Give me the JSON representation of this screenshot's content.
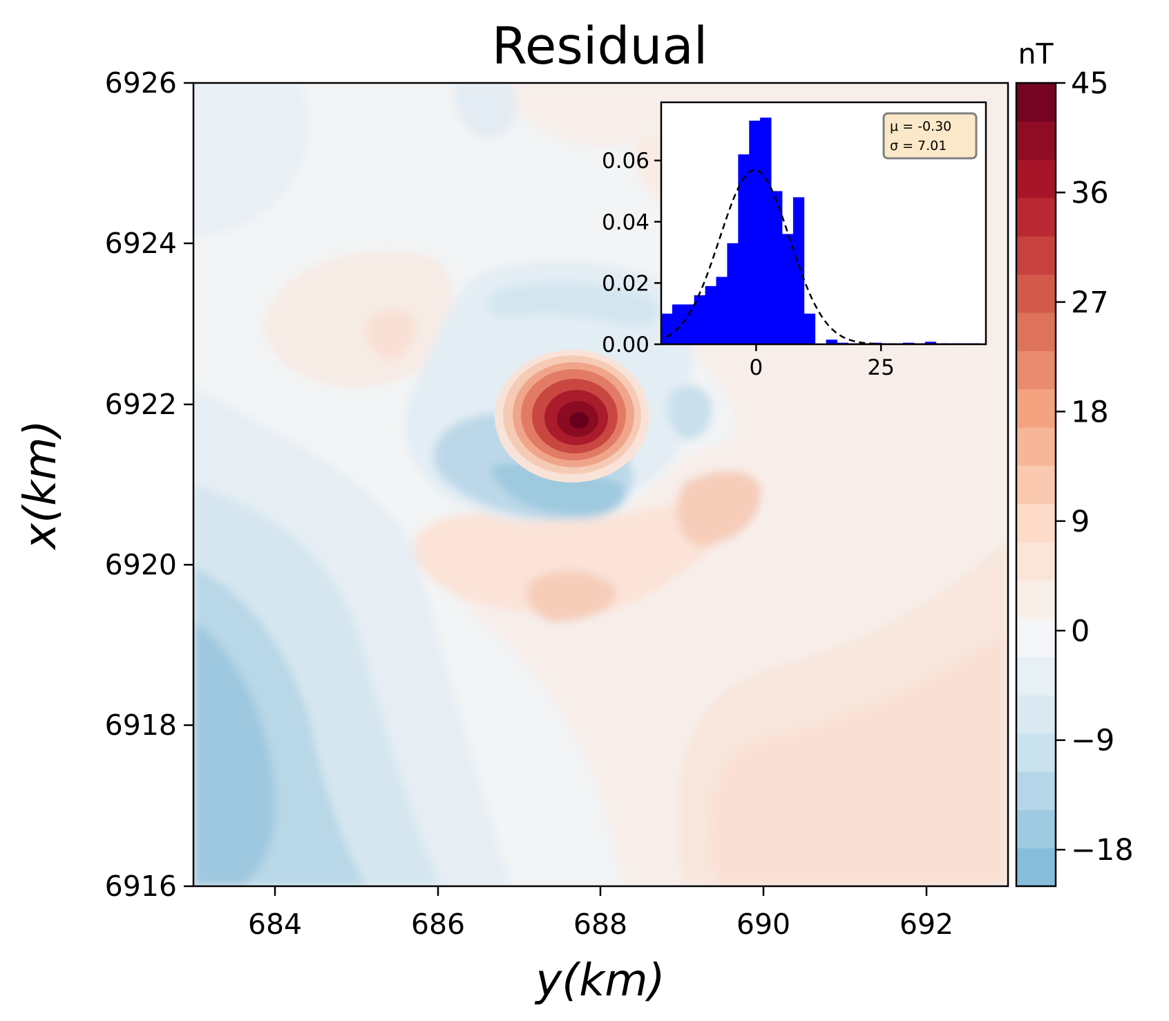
{
  "colors": {
    "inset_bar": "#0000ff",
    "fit_curve": "#000000",
    "stats_box_fill": "#fbe8c8",
    "stats_box_stroke": "#808080"
  },
  "chart_data": [
    {
      "type": "heatmap",
      "title": "Residual",
      "xlabel": "y(km)",
      "ylabel": "x(km)",
      "xlim": [
        683,
        693
      ],
      "ylim": [
        6916,
        6926
      ],
      "xticks": [
        "684",
        "686",
        "688",
        "690",
        "692"
      ],
      "yticks": [
        "6916",
        "6918",
        "6920",
        "6922",
        "6924",
        "6926"
      ],
      "colormap": "RdBu_r",
      "grid": false,
      "colorbar": {
        "label": "nT",
        "range": [
          -21,
          45
        ],
        "ticks": [
          "−18",
          "−9",
          "0",
          "9",
          "18",
          "27",
          "36",
          "45"
        ],
        "levels": 21
      },
      "features": [
        {
          "kind": "positive anomaly",
          "y_km": 687.7,
          "x_km": 6921.8,
          "peak_nT": 45
        },
        {
          "kind": "negative trough",
          "y_km": 687.8,
          "x_km": 6920.8,
          "value_nT": -15
        },
        {
          "kind": "negative anomaly",
          "y_km": 689.1,
          "x_km": 6921.9,
          "value_nT": -9
        },
        {
          "kind": "positive anomaly",
          "y_km": 689.4,
          "x_km": 6920.7,
          "value_nT": 9
        },
        {
          "kind": "positive anomaly",
          "y_km": 687.2,
          "x_km": 6919.6,
          "value_nT": 9
        },
        {
          "kind": "positive anomaly",
          "y_km": 684.5,
          "x_km": 6922.9,
          "value_nT": 6
        },
        {
          "kind": "negative trough",
          "y_km": 683.3,
          "x_km": 6917.5,
          "value_nT": -18
        },
        {
          "kind": "positive region",
          "y_km": 692.0,
          "x_km": 6917.3,
          "value_nT": 6
        },
        {
          "kind": "negative trough",
          "y_km": 688.2,
          "x_km": 6923.2,
          "value_nT": -8
        }
      ]
    },
    {
      "type": "bar",
      "subtype": "histogram",
      "xticks": [
        "0",
        "25"
      ],
      "yticks": [
        "0.00",
        "0.02",
        "0.04",
        "0.06"
      ],
      "xlim": [
        -19,
        46
      ],
      "ylim": [
        0,
        0.079
      ],
      "bin_width": 2.2,
      "x": [
        -17.9,
        -15.7,
        -13.5,
        -11.3,
        -9.1,
        -6.9,
        -4.7,
        -2.5,
        -0.3,
        1.9,
        4.1,
        6.3,
        8.5,
        10.7,
        12.9,
        15.1,
        17.3,
        19.5,
        21.7,
        23.9,
        26.1,
        28.3,
        30.5,
        32.7,
        34.9,
        37.1,
        39.3,
        41.5,
        43.7
      ],
      "values": [
        0.01,
        0.013,
        0.013,
        0.016,
        0.019,
        0.022,
        0.033,
        0.062,
        0.073,
        0.074,
        0.05,
        0.036,
        0.048,
        0.01,
        0.0,
        0.0015,
        0.0005,
        0.0003,
        0.0003,
        0.0005,
        0.0003,
        0.0003,
        0.0005,
        0.0003,
        0.0008,
        0.0003,
        0.0003,
        0.0003,
        0.0003
      ],
      "fit": {
        "type": "normal",
        "mu": -0.3,
        "sigma": 7.01
      },
      "stats_text": [
        "μ = -0.30",
        "σ = 7.01"
      ]
    }
  ]
}
